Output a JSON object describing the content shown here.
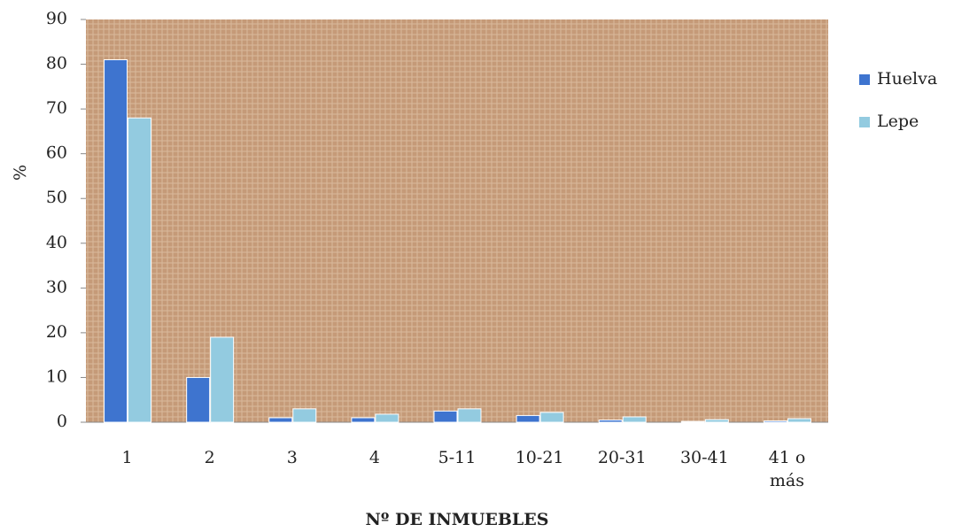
{
  "chart_data": {
    "type": "bar",
    "x_label": "Nº DE INMUEBLES",
    "y_label": "%",
    "categories": [
      "1",
      "2",
      "3",
      "4",
      "5-11",
      "10-21",
      "20-31",
      "30-41",
      "41 o más"
    ],
    "series": [
      {
        "name": "Huelva",
        "color": "#3e74cf",
        "values": [
          81,
          10,
          1,
          1,
          2.5,
          1.5,
          0.5,
          0.2,
          0.3
        ]
      },
      {
        "name": "Lepe",
        "color": "#93cbe0",
        "values": [
          68,
          19,
          3,
          1.8,
          3,
          2.2,
          1.2,
          0.6,
          0.8
        ]
      }
    ],
    "ylim": [
      0,
      90
    ],
    "yticks": [
      0,
      10,
      20,
      30,
      40,
      50,
      60,
      70,
      80,
      90
    ],
    "legend": "right"
  }
}
